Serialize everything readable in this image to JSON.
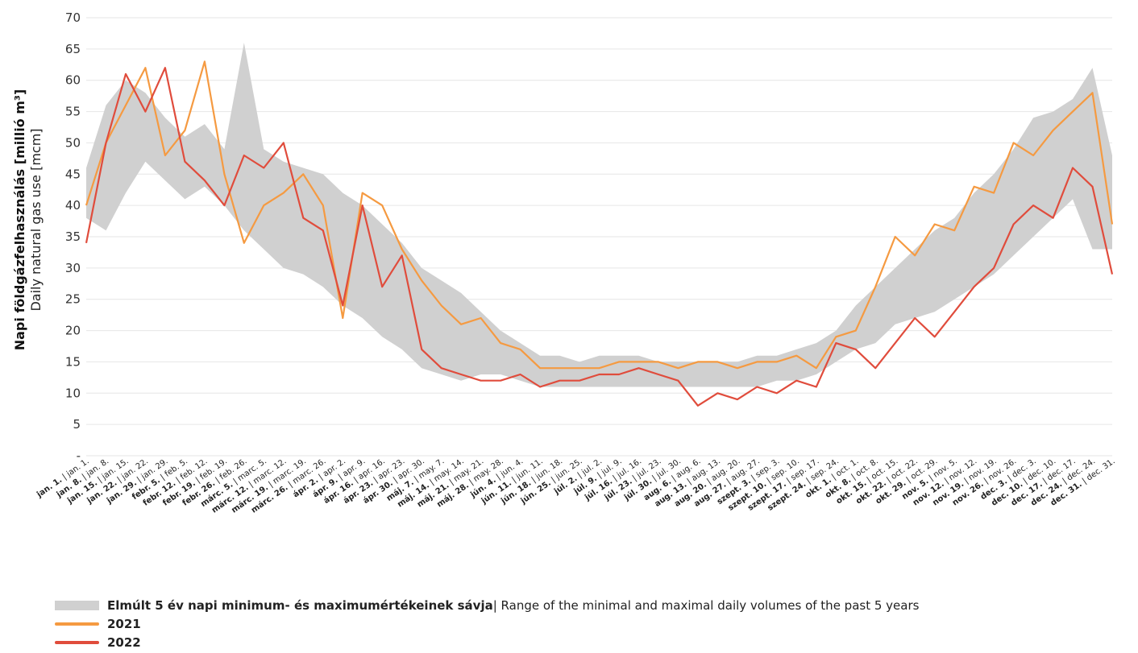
{
  "chart_data": {
    "type": "line",
    "ylabel_hu": "Napi földgázfelhasználás [millió m³]",
    "ylabel_en": "Daily natural gas use [mcm]",
    "ylim": [
      0,
      70
    ],
    "yticks": [
      "-",
      "5",
      "10",
      "15",
      "20",
      "25",
      "30",
      "35",
      "40",
      "45",
      "50",
      "55",
      "60",
      "65",
      "70"
    ],
    "x_ticks": [
      {
        "hu": "jan. 1.",
        "en": "jan. 1."
      },
      {
        "hu": "jan. 8.",
        "en": "jan. 8."
      },
      {
        "hu": "jan. 15.",
        "en": "jan. 15."
      },
      {
        "hu": "jan. 22.",
        "en": "jan. 22."
      },
      {
        "hu": "jan. 29.",
        "en": "jan. 29."
      },
      {
        "hu": "febr. 5.",
        "en": "feb. 5."
      },
      {
        "hu": "febr. 12.",
        "en": "feb. 12."
      },
      {
        "hu": "febr. 19.",
        "en": "feb. 19."
      },
      {
        "hu": "febr. 26.",
        "en": "feb. 26."
      },
      {
        "hu": "márc. 5.",
        "en": "marc. 5."
      },
      {
        "hu": "márc. 12.",
        "en": "marc. 12."
      },
      {
        "hu": "márc. 19.",
        "en": "marc. 19."
      },
      {
        "hu": "márc. 26.",
        "en": "marc. 26."
      },
      {
        "hu": "ápr. 2.",
        "en": "apr. 2."
      },
      {
        "hu": "ápr. 9.",
        "en": "apr. 9."
      },
      {
        "hu": "ápr. 16.",
        "en": "apr. 16."
      },
      {
        "hu": "ápr. 23.",
        "en": "apr. 23."
      },
      {
        "hu": "ápr. 30.",
        "en": "apr. 30."
      },
      {
        "hu": "máj. 7.",
        "en": "may. 7."
      },
      {
        "hu": "máj. 14.",
        "en": "may. 14."
      },
      {
        "hu": "máj. 21.",
        "en": "may. 21."
      },
      {
        "hu": "máj. 28.",
        "en": "may. 28."
      },
      {
        "hu": "jún. 4.",
        "en": "jun. 4."
      },
      {
        "hu": "jún. 11.",
        "en": "jun. 11."
      },
      {
        "hu": "jún. 18.",
        "en": "jun. 18."
      },
      {
        "hu": "jún. 25.",
        "en": "jun. 25."
      },
      {
        "hu": "júl. 2.",
        "en": "jul. 2."
      },
      {
        "hu": "júl. 9.",
        "en": "jul. 9."
      },
      {
        "hu": "júl. 16.",
        "en": "jul. 16."
      },
      {
        "hu": "júl. 23.",
        "en": "jul. 23."
      },
      {
        "hu": "júl. 30.",
        "en": "jul. 30."
      },
      {
        "hu": "aug. 6.",
        "en": "aug. 6."
      },
      {
        "hu": "aug. 13.",
        "en": "aug. 13."
      },
      {
        "hu": "aug. 20.",
        "en": "aug. 20."
      },
      {
        "hu": "aug. 27.",
        "en": "aug. 27."
      },
      {
        "hu": "szept. 3.",
        "en": "sep. 3."
      },
      {
        "hu": "szept. 10.",
        "en": "sep. 10."
      },
      {
        "hu": "szept. 17.",
        "en": "sep. 17."
      },
      {
        "hu": "szept. 24.",
        "en": "sep. 24."
      },
      {
        "hu": "okt. 1.",
        "en": "oct. 1."
      },
      {
        "hu": "okt. 8.",
        "en": "oct. 8."
      },
      {
        "hu": "okt. 15.",
        "en": "oct. 15."
      },
      {
        "hu": "okt. 22.",
        "en": "oct. 22."
      },
      {
        "hu": "okt. 29.",
        "en": "oct. 29."
      },
      {
        "hu": "nov. 5.",
        "en": "nov. 5."
      },
      {
        "hu": "nov. 12.",
        "en": "nov. 12."
      },
      {
        "hu": "nov. 19.",
        "en": "nov. 19."
      },
      {
        "hu": "nov. 26.",
        "en": "nov. 26."
      },
      {
        "hu": "dec. 3.",
        "en": "dec. 3."
      },
      {
        "hu": "dec. 10.",
        "en": "dec. 10."
      },
      {
        "hu": "dec. 17.",
        "en": "dec. 17."
      },
      {
        "hu": "dec. 24.",
        "en": "dec. 24."
      },
      {
        "hu": "dec. 31.",
        "en": "dec. 31."
      }
    ],
    "series": [
      {
        "name": "Elmúlt 5 év napi minimum- és maximumértékeinek sávja",
        "name_en": "Range of the minimal and maximal daily volumes of the past 5 years",
        "color": "#d0d0d0",
        "kind": "band",
        "x": [
          "jan. 1.",
          "jan. 8.",
          "jan. 15.",
          "jan. 22.",
          "jan. 29.",
          "febr. 5.",
          "febr. 12.",
          "febr. 19.",
          "febr. 26.",
          "márc. 5.",
          "márc. 12.",
          "márc. 19.",
          "márc. 26.",
          "ápr. 2.",
          "ápr. 9.",
          "ápr. 16.",
          "ápr. 23.",
          "ápr. 30.",
          "máj. 7.",
          "máj. 14.",
          "máj. 21.",
          "máj. 28.",
          "jún. 4.",
          "jún. 11.",
          "jún. 18.",
          "jún. 25.",
          "júl. 2.",
          "júl. 9.",
          "júl. 16.",
          "júl. 23.",
          "júl. 30.",
          "aug. 6.",
          "aug. 13.",
          "aug. 20.",
          "aug. 27.",
          "szept. 3.",
          "szept. 10.",
          "szept. 17.",
          "szept. 24.",
          "okt. 1.",
          "okt. 8.",
          "okt. 15.",
          "okt. 22.",
          "okt. 29.",
          "nov. 5.",
          "nov. 12.",
          "nov. 19.",
          "nov. 26.",
          "dec. 3.",
          "dec. 10.",
          "dec. 17.",
          "dec. 24.",
          "dec. 31."
        ],
        "low": [
          38,
          36,
          42,
          47,
          44,
          41,
          43,
          40,
          36,
          33,
          30,
          29,
          27,
          24,
          22,
          19,
          17,
          14,
          13,
          12,
          13,
          13,
          12,
          11,
          11,
          11,
          11,
          11,
          11,
          11,
          11,
          11,
          11,
          11,
          11,
          12,
          12,
          13,
          15,
          17,
          18,
          21,
          22,
          23,
          25,
          27,
          29,
          32,
          35,
          38,
          41,
          33,
          33
        ],
        "high": [
          46,
          56,
          60,
          58,
          54,
          51,
          53,
          49,
          66,
          49,
          47,
          46,
          45,
          42,
          40,
          37,
          34,
          30,
          28,
          26,
          23,
          20,
          18,
          16,
          16,
          15,
          16,
          16,
          16,
          15,
          15,
          15,
          15,
          15,
          16,
          16,
          17,
          18,
          20,
          24,
          27,
          30,
          33,
          36,
          38,
          42,
          45,
          49,
          54,
          55,
          57,
          62,
          48
        ]
      },
      {
        "name": "2021",
        "color": "#f59a41",
        "kind": "line",
        "x": [
          "jan. 1.",
          "jan. 8.",
          "jan. 15.",
          "jan. 22.",
          "jan. 29.",
          "febr. 5.",
          "febr. 12.",
          "febr. 19.",
          "febr. 26.",
          "márc. 5.",
          "márc. 12.",
          "márc. 19.",
          "márc. 26.",
          "ápr. 2.",
          "ápr. 9.",
          "ápr. 16.",
          "ápr. 23.",
          "ápr. 30.",
          "máj. 7.",
          "máj. 14.",
          "máj. 21.",
          "máj. 28.",
          "jún. 4.",
          "jún. 11.",
          "jún. 18.",
          "jún. 25.",
          "júl. 2.",
          "júl. 9.",
          "júl. 16.",
          "júl. 23.",
          "júl. 30.",
          "aug. 6.",
          "aug. 13.",
          "aug. 20.",
          "aug. 27.",
          "szept. 3.",
          "szept. 10.",
          "szept. 17.",
          "szept. 24.",
          "okt. 1.",
          "okt. 8.",
          "okt. 15.",
          "okt. 22.",
          "okt. 29.",
          "nov. 5.",
          "nov. 12.",
          "nov. 19.",
          "nov. 26.",
          "dec. 3.",
          "dec. 10.",
          "dec. 17.",
          "dec. 24.",
          "dec. 31."
        ],
        "values": [
          40,
          50,
          56,
          62,
          48,
          52,
          63,
          45,
          34,
          40,
          42,
          45,
          40,
          22,
          42,
          40,
          33,
          28,
          24,
          21,
          22,
          18,
          17,
          14,
          14,
          14,
          14,
          15,
          15,
          15,
          14,
          15,
          15,
          14,
          15,
          15,
          16,
          14,
          19,
          20,
          27,
          35,
          32,
          37,
          36,
          43,
          42,
          50,
          48,
          52,
          55,
          58,
          37
        ]
      },
      {
        "name": "2022",
        "color": "#e04c3c",
        "kind": "line",
        "x": [
          "jan. 1.",
          "jan. 8.",
          "jan. 15.",
          "jan. 22.",
          "jan. 29.",
          "febr. 5.",
          "febr. 12.",
          "febr. 19.",
          "febr. 26.",
          "márc. 5.",
          "márc. 12.",
          "márc. 19.",
          "márc. 26.",
          "ápr. 2.",
          "ápr. 9.",
          "ápr. 16.",
          "ápr. 23.",
          "ápr. 30.",
          "máj. 7.",
          "máj. 14.",
          "máj. 21.",
          "máj. 28.",
          "jún. 4.",
          "jún. 11.",
          "jún. 18.",
          "jún. 25.",
          "júl. 2.",
          "júl. 9.",
          "júl. 16.",
          "júl. 23.",
          "júl. 30.",
          "aug. 6.",
          "aug. 13.",
          "aug. 20.",
          "aug. 27.",
          "szept. 3.",
          "szept. 10.",
          "szept. 17.",
          "szept. 24.",
          "okt. 1.",
          "okt. 8.",
          "okt. 15.",
          "okt. 22.",
          "okt. 29.",
          "nov. 5.",
          "nov. 12.",
          "nov. 19.",
          "nov. 26.",
          "dec. 3.",
          "dec. 10.",
          "dec. 17.",
          "dec. 24.",
          "dec. 31."
        ],
        "values": [
          34,
          50,
          61,
          55,
          62,
          47,
          44,
          40,
          48,
          46,
          50,
          38,
          36,
          24,
          40,
          27,
          32,
          17,
          14,
          13,
          12,
          12,
          13,
          11,
          12,
          12,
          13,
          13,
          14,
          13,
          12,
          8,
          10,
          9,
          11,
          10,
          12,
          11,
          18,
          17,
          14,
          18,
          22,
          19,
          23,
          27,
          30,
          37,
          40,
          38,
          46,
          43,
          29
        ]
      }
    ],
    "legend_placement": "bottom-left",
    "grid": true
  },
  "legend": {
    "band_bold": "Elmúlt 5 év napi minimum- és maximumértékeinek sávja",
    "band_rest": " | Range of the minimal and maximal daily volumes of the past 5 years",
    "y2021": "2021",
    "y2022": "2022"
  }
}
